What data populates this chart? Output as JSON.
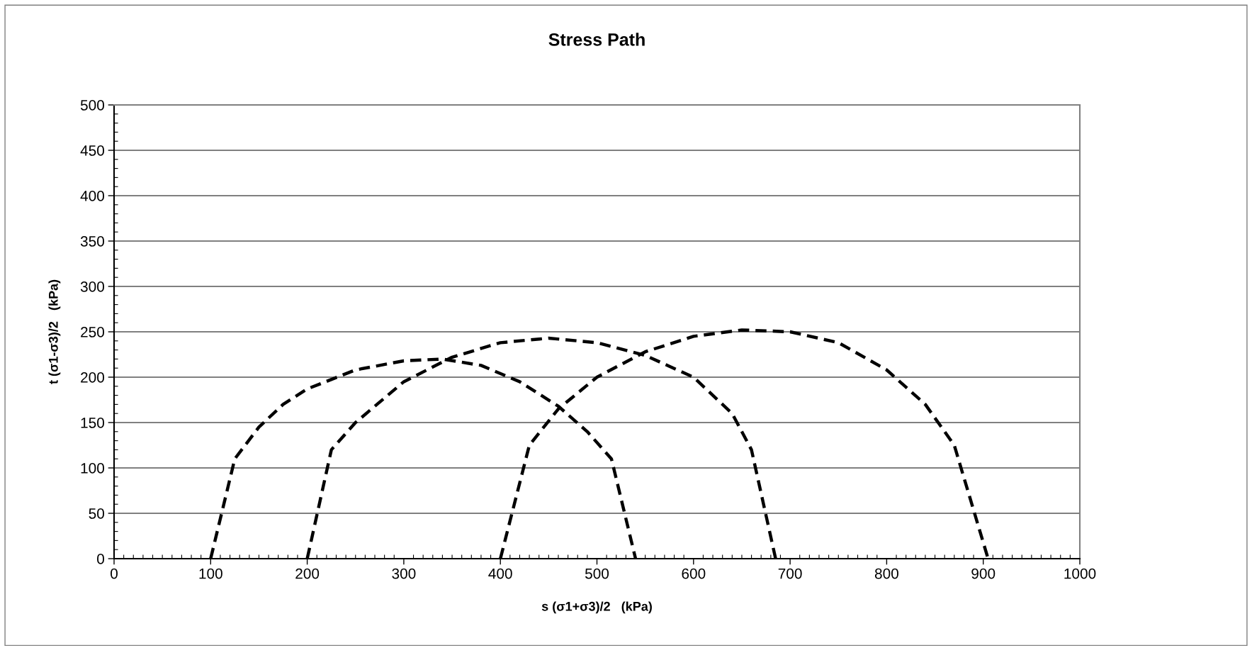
{
  "chart_data": {
    "type": "line",
    "title": "Stress Path",
    "xlabel": "s (σ1+σ3)/2   (kPa)",
    "ylabel": "t (σ1-σ3)/2   (kPa)",
    "xlim": [
      0,
      1000
    ],
    "xticks": [
      0,
      100,
      200,
      300,
      400,
      500,
      600,
      700,
      800,
      900,
      1000
    ],
    "ylim": [
      0,
      500
    ],
    "yticks": [
      0,
      50,
      100,
      150,
      200,
      250,
      300,
      350,
      400,
      450,
      500
    ],
    "grid": "y",
    "marker": "none",
    "line_style": "dashed",
    "series": [
      {
        "color": "#000000",
        "x": [
          100,
          125,
          150,
          175,
          200,
          250,
          300,
          340,
          380,
          420,
          460,
          490,
          515,
          540
        ],
        "values": [
          0,
          110,
          145,
          170,
          187,
          208,
          218,
          220,
          213,
          195,
          168,
          140,
          110,
          0
        ]
      },
      {
        "color": "#000000",
        "x": [
          200,
          225,
          250,
          300,
          350,
          400,
          450,
          500,
          550,
          600,
          640,
          660,
          685
        ],
        "values": [
          0,
          120,
          150,
          195,
          222,
          238,
          243,
          238,
          224,
          200,
          160,
          120,
          0
        ]
      },
      {
        "color": "#000000",
        "x": [
          400,
          430,
          460,
          500,
          550,
          600,
          650,
          700,
          750,
          800,
          840,
          870,
          905
        ],
        "values": [
          0,
          125,
          165,
          200,
          228,
          245,
          252,
          250,
          238,
          208,
          170,
          125,
          0
        ]
      }
    ]
  }
}
